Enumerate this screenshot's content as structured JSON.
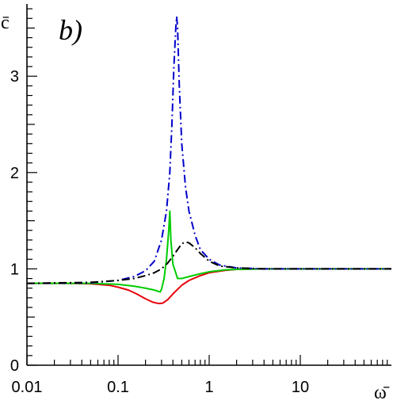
{
  "chart_data": {
    "type": "line",
    "panel_label": "b)",
    "xlabel": "ω̄",
    "ylabel": "c̄",
    "xscale": "log",
    "xlim": [
      0.01,
      100
    ],
    "ylim": [
      0,
      3.75
    ],
    "x_tick_labels": [
      "0.01",
      "0.1",
      "1",
      "10"
    ],
    "x_ticks": [
      0.01,
      0.1,
      1,
      10
    ],
    "y_tick_labels": [
      "0",
      "1",
      "2",
      "3"
    ],
    "y_ticks": [
      0,
      1,
      2,
      3
    ],
    "grid": false,
    "legend": "none",
    "series": [
      {
        "color": "#e8000b",
        "style": "solid",
        "points": [
          [
            0.01,
            0.85
          ],
          [
            0.03,
            0.849
          ],
          [
            0.05,
            0.845
          ],
          [
            0.08,
            0.83
          ],
          [
            0.1,
            0.81
          ],
          [
            0.13,
            0.78
          ],
          [
            0.16,
            0.74
          ],
          [
            0.2,
            0.69
          ],
          [
            0.24,
            0.655
          ],
          [
            0.28,
            0.64
          ],
          [
            0.31,
            0.645
          ],
          [
            0.35,
            0.68
          ],
          [
            0.4,
            0.74
          ],
          [
            0.5,
            0.83
          ],
          [
            0.6,
            0.88
          ],
          [
            0.8,
            0.93
          ],
          [
            1.0,
            0.96
          ],
          [
            1.5,
            0.985
          ],
          [
            2,
            0.995
          ],
          [
            4,
            1.0
          ],
          [
            10,
            1.0
          ],
          [
            100,
            1.0
          ]
        ]
      },
      {
        "color": "#00cc00",
        "style": "solid",
        "points": [
          [
            0.01,
            0.85
          ],
          [
            0.05,
            0.85
          ],
          [
            0.1,
            0.84
          ],
          [
            0.15,
            0.82
          ],
          [
            0.2,
            0.8
          ],
          [
            0.25,
            0.78
          ],
          [
            0.27,
            0.77
          ],
          [
            0.29,
            0.76
          ],
          [
            0.3,
            0.79
          ],
          [
            0.32,
            0.9
          ],
          [
            0.34,
            1.1
          ],
          [
            0.36,
            1.4
          ],
          [
            0.37,
            1.6
          ],
          [
            0.38,
            1.3
          ],
          [
            0.4,
            1.05
          ],
          [
            0.45,
            0.9
          ],
          [
            0.5,
            0.9
          ],
          [
            0.6,
            0.92
          ],
          [
            0.8,
            0.95
          ],
          [
            1.0,
            0.97
          ],
          [
            1.5,
            0.99
          ],
          [
            2,
            0.995
          ],
          [
            4,
            1.0
          ],
          [
            100,
            1.0
          ]
        ]
      },
      {
        "color": "#0000cc",
        "style": "dashdot",
        "points": [
          [
            0.01,
            0.85
          ],
          [
            0.05,
            0.855
          ],
          [
            0.1,
            0.88
          ],
          [
            0.15,
            0.92
          ],
          [
            0.2,
            0.98
          ],
          [
            0.25,
            1.08
          ],
          [
            0.3,
            1.3
          ],
          [
            0.34,
            1.6
          ],
          [
            0.37,
            2.0
          ],
          [
            0.39,
            2.5
          ],
          [
            0.41,
            3.1
          ],
          [
            0.43,
            3.5
          ],
          [
            0.44,
            3.62
          ],
          [
            0.45,
            3.5
          ],
          [
            0.47,
            2.9
          ],
          [
            0.5,
            2.3
          ],
          [
            0.55,
            1.85
          ],
          [
            0.6,
            1.6
          ],
          [
            0.7,
            1.35
          ],
          [
            0.8,
            1.2
          ],
          [
            1.0,
            1.1
          ],
          [
            1.3,
            1.04
          ],
          [
            2,
            1.01
          ],
          [
            4,
            1.0
          ],
          [
            100,
            1.0
          ]
        ]
      },
      {
        "color": "#000000",
        "style": "dashdot",
        "points": [
          [
            0.01,
            0.85
          ],
          [
            0.05,
            0.86
          ],
          [
            0.1,
            0.88
          ],
          [
            0.15,
            0.9
          ],
          [
            0.2,
            0.93
          ],
          [
            0.25,
            0.96
          ],
          [
            0.3,
            1.0
          ],
          [
            0.35,
            1.06
          ],
          [
            0.4,
            1.13
          ],
          [
            0.45,
            1.2
          ],
          [
            0.5,
            1.26
          ],
          [
            0.55,
            1.28
          ],
          [
            0.6,
            1.27
          ],
          [
            0.7,
            1.22
          ],
          [
            0.8,
            1.16
          ],
          [
            1.0,
            1.08
          ],
          [
            1.3,
            1.03
          ],
          [
            2,
            1.01
          ],
          [
            4,
            1.0
          ],
          [
            100,
            1.0
          ]
        ]
      }
    ]
  }
}
